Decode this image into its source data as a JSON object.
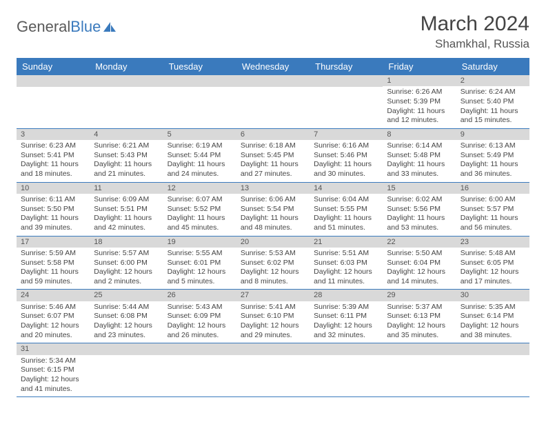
{
  "logo": {
    "text1": "General",
    "text2": "Blue"
  },
  "title": "March 2024",
  "location": "Shamkhal, Russia",
  "weekdays": [
    "Sunday",
    "Monday",
    "Tuesday",
    "Wednesday",
    "Thursday",
    "Friday",
    "Saturday"
  ],
  "colors": {
    "header_bg": "#3a7abd",
    "header_text": "#ffffff",
    "daynum_bg": "#d9d9d9",
    "border": "#3a7abd",
    "body_text": "#444444"
  },
  "weeks": [
    [
      {
        "day": "",
        "sunrise": "",
        "sunset": "",
        "daylight1": "",
        "daylight2": ""
      },
      {
        "day": "",
        "sunrise": "",
        "sunset": "",
        "daylight1": "",
        "daylight2": ""
      },
      {
        "day": "",
        "sunrise": "",
        "sunset": "",
        "daylight1": "",
        "daylight2": ""
      },
      {
        "day": "",
        "sunrise": "",
        "sunset": "",
        "daylight1": "",
        "daylight2": ""
      },
      {
        "day": "",
        "sunrise": "",
        "sunset": "",
        "daylight1": "",
        "daylight2": ""
      },
      {
        "day": "1",
        "sunrise": "Sunrise: 6:26 AM",
        "sunset": "Sunset: 5:39 PM",
        "daylight1": "Daylight: 11 hours",
        "daylight2": "and 12 minutes."
      },
      {
        "day": "2",
        "sunrise": "Sunrise: 6:24 AM",
        "sunset": "Sunset: 5:40 PM",
        "daylight1": "Daylight: 11 hours",
        "daylight2": "and 15 minutes."
      }
    ],
    [
      {
        "day": "3",
        "sunrise": "Sunrise: 6:23 AM",
        "sunset": "Sunset: 5:41 PM",
        "daylight1": "Daylight: 11 hours",
        "daylight2": "and 18 minutes."
      },
      {
        "day": "4",
        "sunrise": "Sunrise: 6:21 AM",
        "sunset": "Sunset: 5:43 PM",
        "daylight1": "Daylight: 11 hours",
        "daylight2": "and 21 minutes."
      },
      {
        "day": "5",
        "sunrise": "Sunrise: 6:19 AM",
        "sunset": "Sunset: 5:44 PM",
        "daylight1": "Daylight: 11 hours",
        "daylight2": "and 24 minutes."
      },
      {
        "day": "6",
        "sunrise": "Sunrise: 6:18 AM",
        "sunset": "Sunset: 5:45 PM",
        "daylight1": "Daylight: 11 hours",
        "daylight2": "and 27 minutes."
      },
      {
        "day": "7",
        "sunrise": "Sunrise: 6:16 AM",
        "sunset": "Sunset: 5:46 PM",
        "daylight1": "Daylight: 11 hours",
        "daylight2": "and 30 minutes."
      },
      {
        "day": "8",
        "sunrise": "Sunrise: 6:14 AM",
        "sunset": "Sunset: 5:48 PM",
        "daylight1": "Daylight: 11 hours",
        "daylight2": "and 33 minutes."
      },
      {
        "day": "9",
        "sunrise": "Sunrise: 6:13 AM",
        "sunset": "Sunset: 5:49 PM",
        "daylight1": "Daylight: 11 hours",
        "daylight2": "and 36 minutes."
      }
    ],
    [
      {
        "day": "10",
        "sunrise": "Sunrise: 6:11 AM",
        "sunset": "Sunset: 5:50 PM",
        "daylight1": "Daylight: 11 hours",
        "daylight2": "and 39 minutes."
      },
      {
        "day": "11",
        "sunrise": "Sunrise: 6:09 AM",
        "sunset": "Sunset: 5:51 PM",
        "daylight1": "Daylight: 11 hours",
        "daylight2": "and 42 minutes."
      },
      {
        "day": "12",
        "sunrise": "Sunrise: 6:07 AM",
        "sunset": "Sunset: 5:52 PM",
        "daylight1": "Daylight: 11 hours",
        "daylight2": "and 45 minutes."
      },
      {
        "day": "13",
        "sunrise": "Sunrise: 6:06 AM",
        "sunset": "Sunset: 5:54 PM",
        "daylight1": "Daylight: 11 hours",
        "daylight2": "and 48 minutes."
      },
      {
        "day": "14",
        "sunrise": "Sunrise: 6:04 AM",
        "sunset": "Sunset: 5:55 PM",
        "daylight1": "Daylight: 11 hours",
        "daylight2": "and 51 minutes."
      },
      {
        "day": "15",
        "sunrise": "Sunrise: 6:02 AM",
        "sunset": "Sunset: 5:56 PM",
        "daylight1": "Daylight: 11 hours",
        "daylight2": "and 53 minutes."
      },
      {
        "day": "16",
        "sunrise": "Sunrise: 6:00 AM",
        "sunset": "Sunset: 5:57 PM",
        "daylight1": "Daylight: 11 hours",
        "daylight2": "and 56 minutes."
      }
    ],
    [
      {
        "day": "17",
        "sunrise": "Sunrise: 5:59 AM",
        "sunset": "Sunset: 5:58 PM",
        "daylight1": "Daylight: 11 hours",
        "daylight2": "and 59 minutes."
      },
      {
        "day": "18",
        "sunrise": "Sunrise: 5:57 AM",
        "sunset": "Sunset: 6:00 PM",
        "daylight1": "Daylight: 12 hours",
        "daylight2": "and 2 minutes."
      },
      {
        "day": "19",
        "sunrise": "Sunrise: 5:55 AM",
        "sunset": "Sunset: 6:01 PM",
        "daylight1": "Daylight: 12 hours",
        "daylight2": "and 5 minutes."
      },
      {
        "day": "20",
        "sunrise": "Sunrise: 5:53 AM",
        "sunset": "Sunset: 6:02 PM",
        "daylight1": "Daylight: 12 hours",
        "daylight2": "and 8 minutes."
      },
      {
        "day": "21",
        "sunrise": "Sunrise: 5:51 AM",
        "sunset": "Sunset: 6:03 PM",
        "daylight1": "Daylight: 12 hours",
        "daylight2": "and 11 minutes."
      },
      {
        "day": "22",
        "sunrise": "Sunrise: 5:50 AM",
        "sunset": "Sunset: 6:04 PM",
        "daylight1": "Daylight: 12 hours",
        "daylight2": "and 14 minutes."
      },
      {
        "day": "23",
        "sunrise": "Sunrise: 5:48 AM",
        "sunset": "Sunset: 6:05 PM",
        "daylight1": "Daylight: 12 hours",
        "daylight2": "and 17 minutes."
      }
    ],
    [
      {
        "day": "24",
        "sunrise": "Sunrise: 5:46 AM",
        "sunset": "Sunset: 6:07 PM",
        "daylight1": "Daylight: 12 hours",
        "daylight2": "and 20 minutes."
      },
      {
        "day": "25",
        "sunrise": "Sunrise: 5:44 AM",
        "sunset": "Sunset: 6:08 PM",
        "daylight1": "Daylight: 12 hours",
        "daylight2": "and 23 minutes."
      },
      {
        "day": "26",
        "sunrise": "Sunrise: 5:43 AM",
        "sunset": "Sunset: 6:09 PM",
        "daylight1": "Daylight: 12 hours",
        "daylight2": "and 26 minutes."
      },
      {
        "day": "27",
        "sunrise": "Sunrise: 5:41 AM",
        "sunset": "Sunset: 6:10 PM",
        "daylight1": "Daylight: 12 hours",
        "daylight2": "and 29 minutes."
      },
      {
        "day": "28",
        "sunrise": "Sunrise: 5:39 AM",
        "sunset": "Sunset: 6:11 PM",
        "daylight1": "Daylight: 12 hours",
        "daylight2": "and 32 minutes."
      },
      {
        "day": "29",
        "sunrise": "Sunrise: 5:37 AM",
        "sunset": "Sunset: 6:13 PM",
        "daylight1": "Daylight: 12 hours",
        "daylight2": "and 35 minutes."
      },
      {
        "day": "30",
        "sunrise": "Sunrise: 5:35 AM",
        "sunset": "Sunset: 6:14 PM",
        "daylight1": "Daylight: 12 hours",
        "daylight2": "and 38 minutes."
      }
    ],
    [
      {
        "day": "31",
        "sunrise": "Sunrise: 5:34 AM",
        "sunset": "Sunset: 6:15 PM",
        "daylight1": "Daylight: 12 hours",
        "daylight2": "and 41 minutes."
      },
      {
        "day": "",
        "sunrise": "",
        "sunset": "",
        "daylight1": "",
        "daylight2": ""
      },
      {
        "day": "",
        "sunrise": "",
        "sunset": "",
        "daylight1": "",
        "daylight2": ""
      },
      {
        "day": "",
        "sunrise": "",
        "sunset": "",
        "daylight1": "",
        "daylight2": ""
      },
      {
        "day": "",
        "sunrise": "",
        "sunset": "",
        "daylight1": "",
        "daylight2": ""
      },
      {
        "day": "",
        "sunrise": "",
        "sunset": "",
        "daylight1": "",
        "daylight2": ""
      },
      {
        "day": "",
        "sunrise": "",
        "sunset": "",
        "daylight1": "",
        "daylight2": ""
      }
    ]
  ]
}
